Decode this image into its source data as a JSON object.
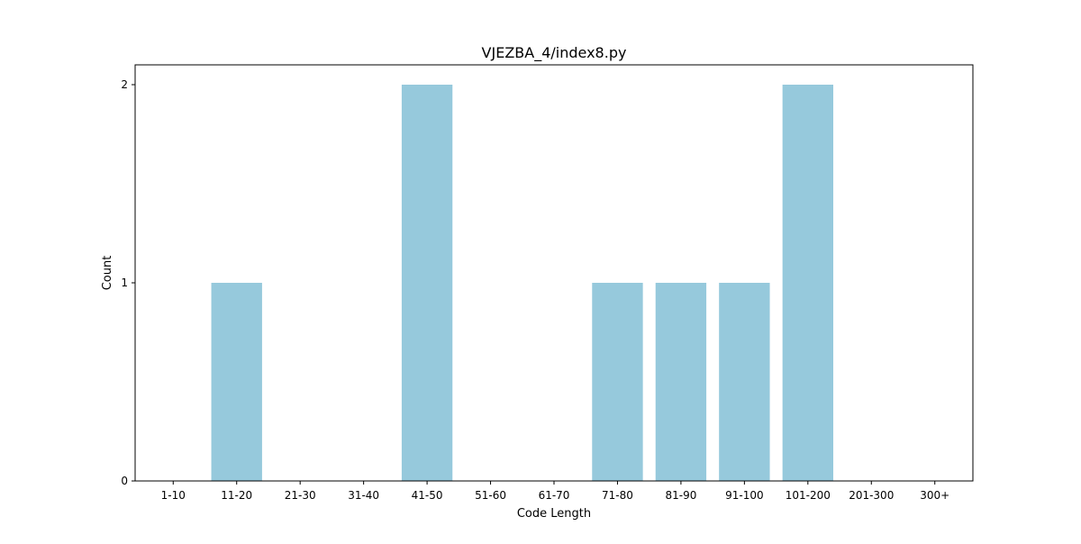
{
  "chart_data": {
    "type": "bar",
    "title": "VJEZBA_4/index8.py",
    "xlabel": "Code Length",
    "ylabel": "Count",
    "categories": [
      "1-10",
      "11-20",
      "21-30",
      "31-40",
      "41-50",
      "51-60",
      "61-70",
      "71-80",
      "81-90",
      "91-100",
      "101-200",
      "201-300",
      "300+"
    ],
    "values": [
      0,
      1,
      0,
      0,
      2,
      0,
      0,
      1,
      1,
      1,
      2,
      0,
      0
    ],
    "ylim": [
      0,
      2.1
    ],
    "yticks": [
      "0",
      "1",
      "2"
    ],
    "grid": false,
    "legend": "none",
    "bar_color": "#96c9dc"
  }
}
